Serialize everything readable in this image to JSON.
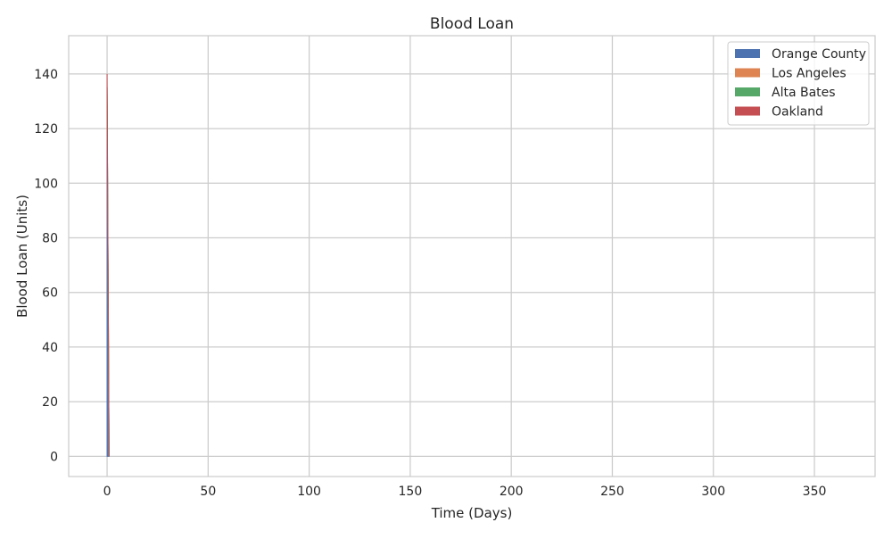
{
  "chart_data": {
    "type": "area",
    "stacked": true,
    "title": "Blood Loan",
    "xlabel": "Time (Days)",
    "ylabel": "Blood Loan (Units)",
    "xlim": [
      -19,
      380
    ],
    "ylim": [
      -7.4,
      154
    ],
    "xticks": [
      0,
      50,
      100,
      150,
      200,
      250,
      300,
      350
    ],
    "yticks": [
      0,
      20,
      40,
      60,
      80,
      100,
      120,
      140
    ],
    "grid": true,
    "legend_position": "top-right",
    "x": [
      0,
      1
    ],
    "series": [
      {
        "name": "Orange County",
        "color": "#4c72b0",
        "values": [
          135,
          0
        ]
      },
      {
        "name": "Los Angeles",
        "color": "#dd8452",
        "values": [
          0,
          0
        ]
      },
      {
        "name": "Alta Bates",
        "color": "#55a868",
        "values": [
          0,
          0
        ]
      },
      {
        "name": "Oakland",
        "color": "#c44e52",
        "values": [
          5,
          0
        ]
      }
    ]
  }
}
